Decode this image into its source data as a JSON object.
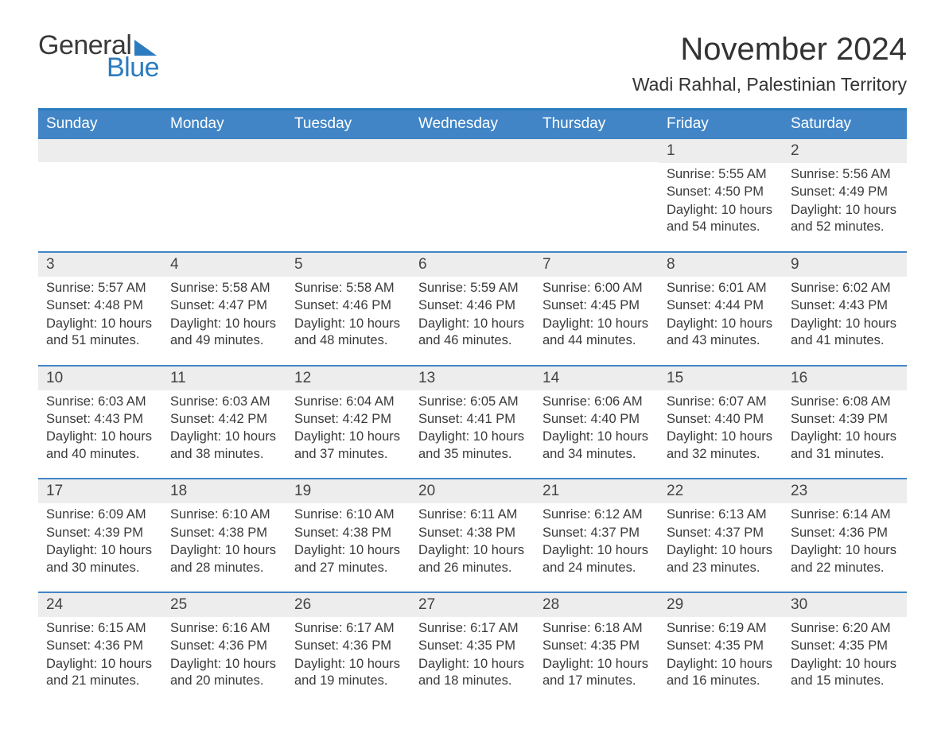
{
  "logo": {
    "word1": "General",
    "word2": "Blue"
  },
  "title": "November 2024",
  "location": "Wadi Rahhal, Palestinian Territory",
  "colors": {
    "brand_blue": "#2b7bbf",
    "header_blue": "#4185c6",
    "row_separator": "#4185c6",
    "daynum_bg": "#ededed",
    "text": "#3a3a3a",
    "bg": "#ffffff"
  },
  "typography": {
    "title_fontsize": 40,
    "location_fontsize": 23,
    "dayhead_fontsize": 19,
    "daynum_fontsize": 19,
    "body_fontsize": 16.5
  },
  "day_headers": [
    "Sunday",
    "Monday",
    "Tuesday",
    "Wednesday",
    "Thursday",
    "Friday",
    "Saturday"
  ],
  "weeks": [
    [
      {
        "blank": true
      },
      {
        "blank": true
      },
      {
        "blank": true
      },
      {
        "blank": true
      },
      {
        "blank": true
      },
      {
        "n": "1",
        "sunrise": "Sunrise: 5:55 AM",
        "sunset": "Sunset: 4:50 PM",
        "daylight": "Daylight: 10 hours and 54 minutes."
      },
      {
        "n": "2",
        "sunrise": "Sunrise: 5:56 AM",
        "sunset": "Sunset: 4:49 PM",
        "daylight": "Daylight: 10 hours and 52 minutes."
      }
    ],
    [
      {
        "n": "3",
        "sunrise": "Sunrise: 5:57 AM",
        "sunset": "Sunset: 4:48 PM",
        "daylight": "Daylight: 10 hours and 51 minutes."
      },
      {
        "n": "4",
        "sunrise": "Sunrise: 5:58 AM",
        "sunset": "Sunset: 4:47 PM",
        "daylight": "Daylight: 10 hours and 49 minutes."
      },
      {
        "n": "5",
        "sunrise": "Sunrise: 5:58 AM",
        "sunset": "Sunset: 4:46 PM",
        "daylight": "Daylight: 10 hours and 48 minutes."
      },
      {
        "n": "6",
        "sunrise": "Sunrise: 5:59 AM",
        "sunset": "Sunset: 4:46 PM",
        "daylight": "Daylight: 10 hours and 46 minutes."
      },
      {
        "n": "7",
        "sunrise": "Sunrise: 6:00 AM",
        "sunset": "Sunset: 4:45 PM",
        "daylight": "Daylight: 10 hours and 44 minutes."
      },
      {
        "n": "8",
        "sunrise": "Sunrise: 6:01 AM",
        "sunset": "Sunset: 4:44 PM",
        "daylight": "Daylight: 10 hours and 43 minutes."
      },
      {
        "n": "9",
        "sunrise": "Sunrise: 6:02 AM",
        "sunset": "Sunset: 4:43 PM",
        "daylight": "Daylight: 10 hours and 41 minutes."
      }
    ],
    [
      {
        "n": "10",
        "sunrise": "Sunrise: 6:03 AM",
        "sunset": "Sunset: 4:43 PM",
        "daylight": "Daylight: 10 hours and 40 minutes."
      },
      {
        "n": "11",
        "sunrise": "Sunrise: 6:03 AM",
        "sunset": "Sunset: 4:42 PM",
        "daylight": "Daylight: 10 hours and 38 minutes."
      },
      {
        "n": "12",
        "sunrise": "Sunrise: 6:04 AM",
        "sunset": "Sunset: 4:42 PM",
        "daylight": "Daylight: 10 hours and 37 minutes."
      },
      {
        "n": "13",
        "sunrise": "Sunrise: 6:05 AM",
        "sunset": "Sunset: 4:41 PM",
        "daylight": "Daylight: 10 hours and 35 minutes."
      },
      {
        "n": "14",
        "sunrise": "Sunrise: 6:06 AM",
        "sunset": "Sunset: 4:40 PM",
        "daylight": "Daylight: 10 hours and 34 minutes."
      },
      {
        "n": "15",
        "sunrise": "Sunrise: 6:07 AM",
        "sunset": "Sunset: 4:40 PM",
        "daylight": "Daylight: 10 hours and 32 minutes."
      },
      {
        "n": "16",
        "sunrise": "Sunrise: 6:08 AM",
        "sunset": "Sunset: 4:39 PM",
        "daylight": "Daylight: 10 hours and 31 minutes."
      }
    ],
    [
      {
        "n": "17",
        "sunrise": "Sunrise: 6:09 AM",
        "sunset": "Sunset: 4:39 PM",
        "daylight": "Daylight: 10 hours and 30 minutes."
      },
      {
        "n": "18",
        "sunrise": "Sunrise: 6:10 AM",
        "sunset": "Sunset: 4:38 PM",
        "daylight": "Daylight: 10 hours and 28 minutes."
      },
      {
        "n": "19",
        "sunrise": "Sunrise: 6:10 AM",
        "sunset": "Sunset: 4:38 PM",
        "daylight": "Daylight: 10 hours and 27 minutes."
      },
      {
        "n": "20",
        "sunrise": "Sunrise: 6:11 AM",
        "sunset": "Sunset: 4:38 PM",
        "daylight": "Daylight: 10 hours and 26 minutes."
      },
      {
        "n": "21",
        "sunrise": "Sunrise: 6:12 AM",
        "sunset": "Sunset: 4:37 PM",
        "daylight": "Daylight: 10 hours and 24 minutes."
      },
      {
        "n": "22",
        "sunrise": "Sunrise: 6:13 AM",
        "sunset": "Sunset: 4:37 PM",
        "daylight": "Daylight: 10 hours and 23 minutes."
      },
      {
        "n": "23",
        "sunrise": "Sunrise: 6:14 AM",
        "sunset": "Sunset: 4:36 PM",
        "daylight": "Daylight: 10 hours and 22 minutes."
      }
    ],
    [
      {
        "n": "24",
        "sunrise": "Sunrise: 6:15 AM",
        "sunset": "Sunset: 4:36 PM",
        "daylight": "Daylight: 10 hours and 21 minutes."
      },
      {
        "n": "25",
        "sunrise": "Sunrise: 6:16 AM",
        "sunset": "Sunset: 4:36 PM",
        "daylight": "Daylight: 10 hours and 20 minutes."
      },
      {
        "n": "26",
        "sunrise": "Sunrise: 6:17 AM",
        "sunset": "Sunset: 4:36 PM",
        "daylight": "Daylight: 10 hours and 19 minutes."
      },
      {
        "n": "27",
        "sunrise": "Sunrise: 6:17 AM",
        "sunset": "Sunset: 4:35 PM",
        "daylight": "Daylight: 10 hours and 18 minutes."
      },
      {
        "n": "28",
        "sunrise": "Sunrise: 6:18 AM",
        "sunset": "Sunset: 4:35 PM",
        "daylight": "Daylight: 10 hours and 17 minutes."
      },
      {
        "n": "29",
        "sunrise": "Sunrise: 6:19 AM",
        "sunset": "Sunset: 4:35 PM",
        "daylight": "Daylight: 10 hours and 16 minutes."
      },
      {
        "n": "30",
        "sunrise": "Sunrise: 6:20 AM",
        "sunset": "Sunset: 4:35 PM",
        "daylight": "Daylight: 10 hours and 15 minutes."
      }
    ]
  ]
}
